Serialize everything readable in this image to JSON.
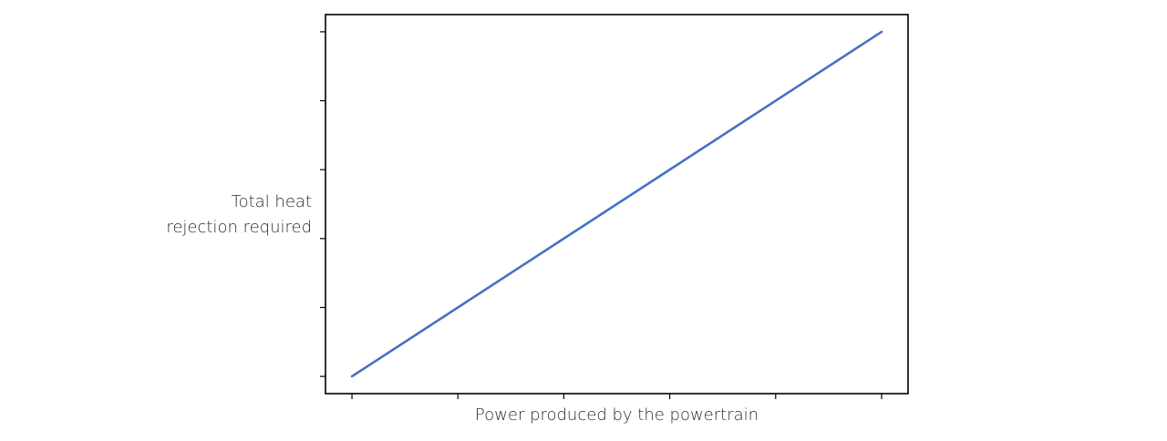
{
  "chart_data": {
    "type": "line",
    "xlabel": "Power produced by the powertrain",
    "ylabel_lines": [
      "Total heat",
      "rejection required"
    ],
    "x_ticks": [
      0,
      1,
      2,
      3,
      4,
      5
    ],
    "y_ticks": [
      0,
      1,
      2,
      3,
      4,
      5
    ],
    "xlim": [
      -0.25,
      5.25
    ],
    "ylim": [
      -0.25,
      5.25
    ],
    "tick_labels_shown": false,
    "grid": false,
    "series": [
      {
        "x": [
          0,
          5
        ],
        "y": [
          0,
          5
        ]
      }
    ],
    "colors": {
      "line": "#4472c4",
      "axes": "#000000"
    }
  }
}
